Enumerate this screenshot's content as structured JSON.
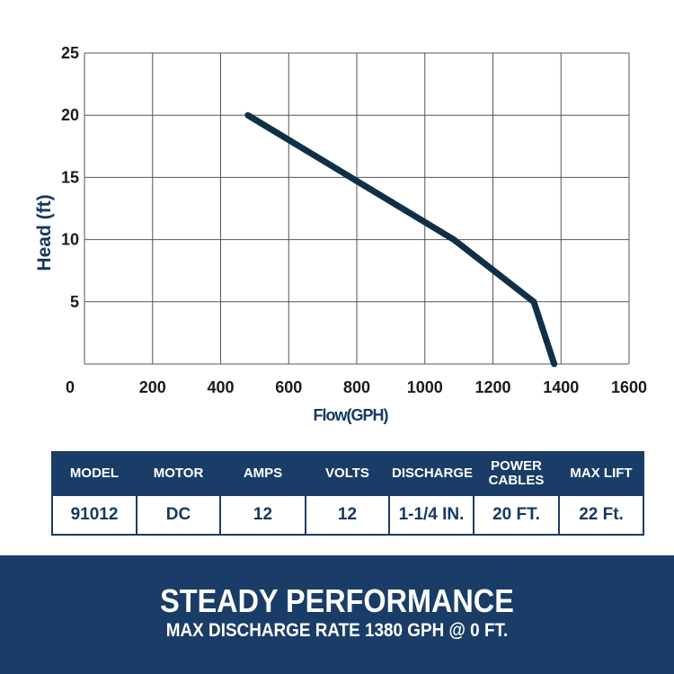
{
  "chart_data": {
    "type": "line",
    "title": "",
    "xlabel": "Flow(GPH)",
    "ylabel": "Head (ft)",
    "xlim": [
      0,
      1600
    ],
    "ylim": [
      0,
      25
    ],
    "x_ticks": [
      0,
      200,
      400,
      600,
      800,
      1000,
      1200,
      1400,
      1600
    ],
    "y_ticks": [
      5,
      10,
      15,
      20,
      25
    ],
    "grid": true,
    "series": [
      {
        "x": [
          480,
          1085,
          1320,
          1380
        ],
        "y": [
          20,
          10,
          5,
          0
        ],
        "color": "#0f3047"
      }
    ]
  },
  "specs": {
    "headers": [
      "MODEL",
      "MOTOR",
      "AMPS",
      "VOLTS",
      "DISCHARGE",
      "POWER CABLES",
      "MAX LIFT"
    ],
    "values": [
      "91012",
      "DC",
      "12",
      "12",
      "1-1/4 IN.",
      "20 FT.",
      "22 Ft."
    ]
  },
  "banner": {
    "title": "STEADY PERFORMANCE",
    "subtitle": "MAX DISCHARGE RATE 1380 GPH @ 0 FT."
  },
  "colors": {
    "brand_navy": "#1a3d67",
    "curve": "#0f3047",
    "grid": "#555555"
  }
}
